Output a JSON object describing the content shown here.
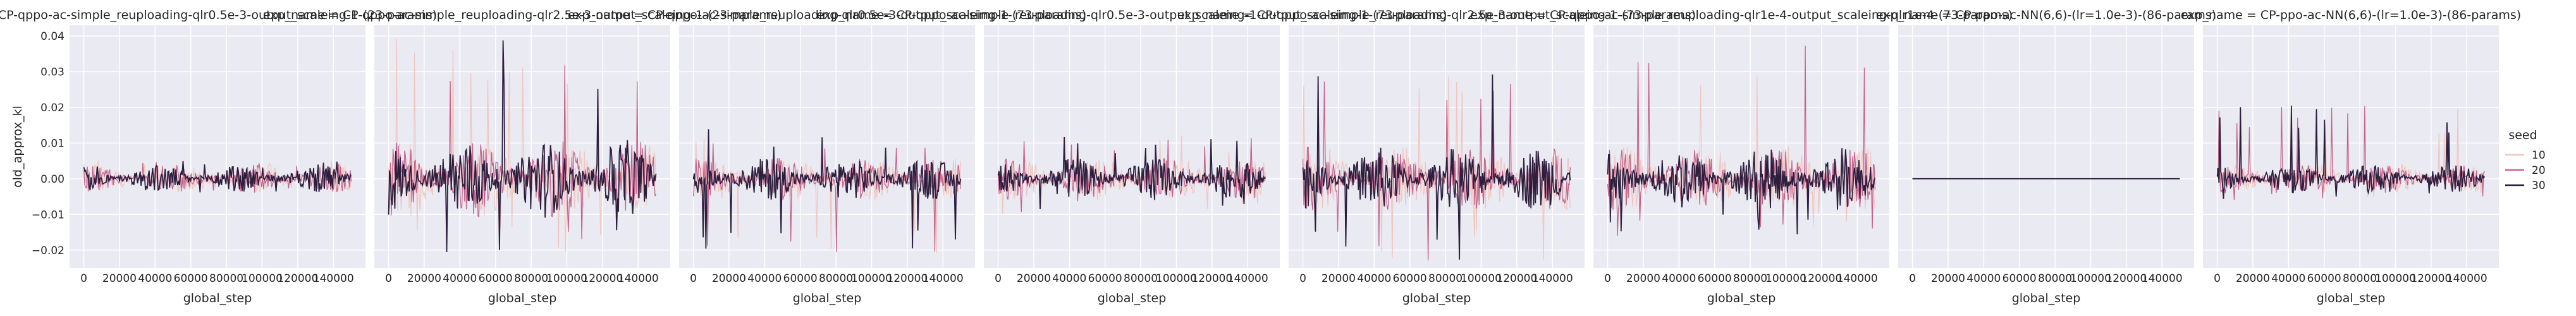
{
  "chart_data": {
    "type": "line",
    "xlabel": "global_step",
    "ylabel": "old_approx_kl",
    "xlim": [
      -8000,
      158000
    ],
    "ylim": [
      -0.025,
      0.043
    ],
    "xticks": [
      0,
      20000,
      40000,
      60000,
      80000,
      100000,
      120000,
      140000
    ],
    "yticks": [
      -0.02,
      -0.01,
      0.0,
      0.01,
      0.02,
      0.03,
      0.04
    ],
    "ytick_labels": [
      "−0.02",
      "−0.01",
      "0.00",
      "0.01",
      "0.02",
      "0.03",
      "0.04"
    ],
    "grid": true,
    "legend": {
      "title": "seed",
      "placement": "right",
      "entries": [
        {
          "label": "10",
          "color": "#f1c6c0"
        },
        {
          "label": "20",
          "color": "#c4638b"
        },
        {
          "label": "30",
          "color": "#2d1e3e"
        }
      ]
    },
    "panels": [
      {
        "title": "CP-qppo-ac-simple_reuploading-qlr0.5e-3-output_scaleing-1-(23-params)",
        "amplitude": 0.004,
        "spike_max": 0.005,
        "spike_min": -0.004,
        "flat": false
      },
      {
        "title": "exp_name = CP-qppo-ac-simple_reuploading-qlr2.5e-3-output_scaleing-1-(23-params)",
        "amplitude": 0.011,
        "spike_max": 0.04,
        "spike_min": -0.021,
        "flat": false
      },
      {
        "title": "exp_name = CP-qppo-ac-simple_reuploading-qlr0.5e-3-output_scaleing-1-(73-params)",
        "amplitude": 0.006,
        "spike_max": 0.014,
        "spike_min": -0.021,
        "flat": false
      },
      {
        "title": "exp_name = CP-qppo-ac-simple_reuploading-qlr0.5e-3-output_scaleing-1-output_scaleing-1-(73-params)",
        "amplitude": 0.006,
        "spike_max": 0.012,
        "spike_min": -0.01,
        "flat": false
      },
      {
        "title": "exp_name = CP-qppo-ac-simple_reuploading-qlr2.5e-3-output_scaleing-1-(73-params)",
        "amplitude": 0.009,
        "spike_max": 0.031,
        "spike_min": -0.023,
        "flat": false
      },
      {
        "title": "exp_name = CP-qppo-ac-simple_reuploading-qlr1e-4-output_scaleing-qlr1e-4-(73-params)",
        "amplitude": 0.009,
        "spike_max": 0.04,
        "spike_min": -0.016,
        "flat": false
      },
      {
        "title": "exp_name = CP-ppo-ac-NN(6,6)-(lr=1.0e-3)-(86-params)",
        "amplitude": 0.0,
        "spike_max": 0.0,
        "spike_min": 0.0,
        "flat": true
      },
      {
        "title": "exp_name = CP-ppo-ac-NN(6,6)-(lr=1.0e-3)-(86-params)",
        "amplitude": 0.004,
        "spike_max": 0.021,
        "spike_min": -0.006,
        "flat": false
      }
    ]
  }
}
